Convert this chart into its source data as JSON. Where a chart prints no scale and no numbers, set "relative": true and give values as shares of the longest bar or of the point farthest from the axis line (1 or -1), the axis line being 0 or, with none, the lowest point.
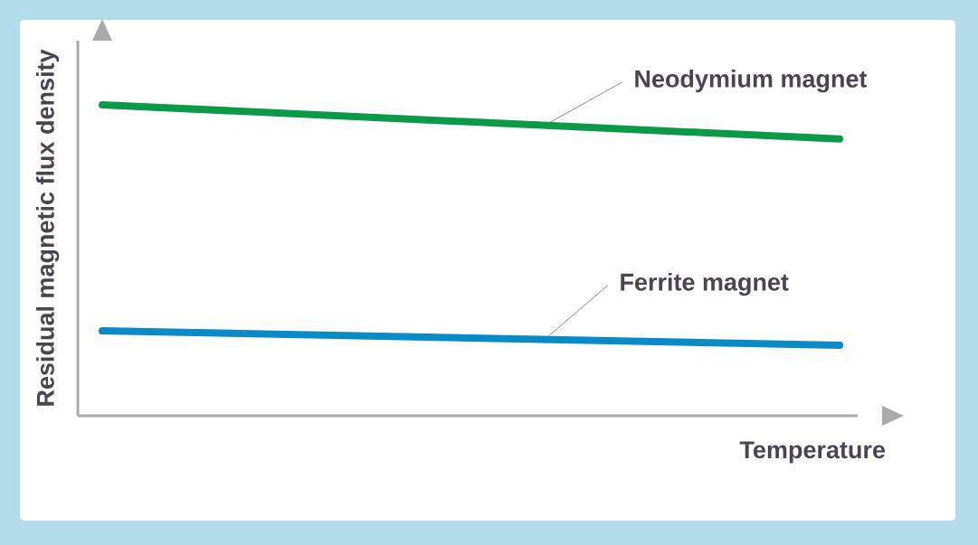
{
  "chart_data": {
    "type": "line",
    "relative": true,
    "xlabel": "Temperature",
    "ylabel": "Residual magnetic flux density",
    "categories": [
      null,
      null
    ],
    "series": [
      {
        "name": "Neodymium magnet",
        "color": "#0a9a4a",
        "values": [
          1,
          0.89
        ]
      },
      {
        "name": "Ferrite magnet",
        "color": "#0a8bc8",
        "values": [
          0.273,
          0.227
        ]
      }
    ]
  }
}
